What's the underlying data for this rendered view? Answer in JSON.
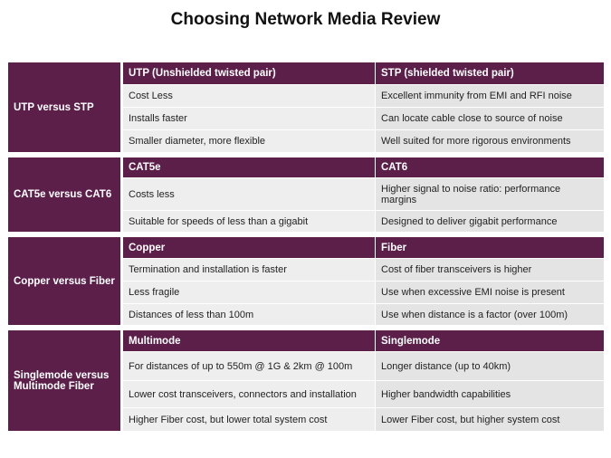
{
  "title": "Choosing Network Media Review",
  "sections": [
    {
      "group": "UTP versus STP",
      "headers": [
        "UTP (Unshielded twisted pair)",
        "STP (shielded twisted pair)"
      ],
      "rows": [
        [
          "Cost Less",
          "Excellent immunity from EMI and RFI noise"
        ],
        [
          "Installs faster",
          "Can locate cable close to source of noise"
        ],
        [
          "Smaller diameter, more flexible",
          "Well suited for more rigorous environments"
        ]
      ]
    },
    {
      "group": "CAT5e versus CAT6",
      "headers": [
        "CAT5e",
        "CAT6"
      ],
      "rows": [
        [
          "Costs less",
          "Higher signal to noise ratio: performance margins"
        ],
        [
          "Suitable for speeds of less than a gigabit",
          "Designed to deliver gigabit performance"
        ]
      ]
    },
    {
      "group": "Copper versus Fiber",
      "headers": [
        "Copper",
        "Fiber"
      ],
      "rows": [
        [
          "Termination and installation is faster",
          "Cost of fiber transceivers is higher"
        ],
        [
          "Less fragile",
          "Use when excessive EMI noise is present"
        ],
        [
          "Distances of less than 100m",
          "Use when distance is a factor (over 100m)"
        ]
      ]
    },
    {
      "group": "Singlemode versus Multimode Fiber",
      "headers": [
        "Multimode",
        "Singlemode"
      ],
      "rows": [
        [
          "For distances of up to 550m @ 1G & 2km @ 100m",
          "Longer distance (up to 40km)"
        ],
        [
          "Lower cost transceivers, connectors and installation",
          "Higher bandwidth capabilities"
        ],
        [
          "Higher Fiber cost, but lower total system cost",
          "Lower Fiber cost, but higher system cost"
        ]
      ]
    }
  ]
}
